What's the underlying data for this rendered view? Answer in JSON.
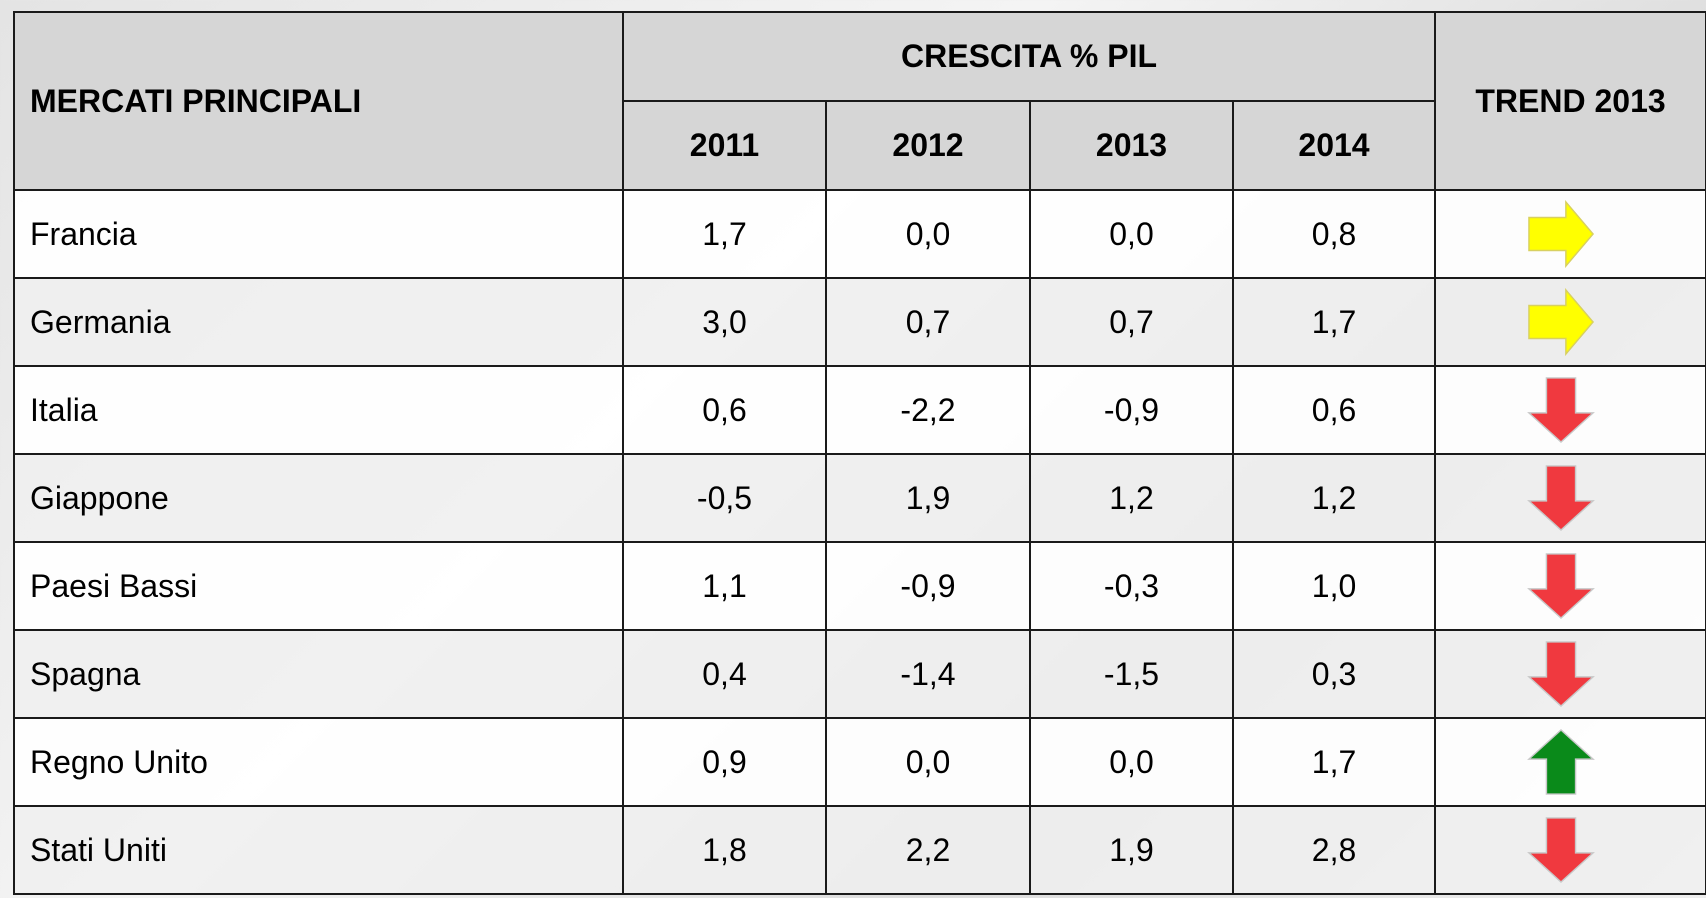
{
  "table": {
    "header": {
      "market": "MERCATI PRINCIPALI",
      "growth": "CRESCITA % PIL",
      "trend": "TREND 2013",
      "years": [
        "2011",
        "2012",
        "2013",
        "2014"
      ]
    },
    "rows": [
      [
        "Francia",
        "1,7",
        "0,0",
        "0,0",
        "0,8"
      ],
      [
        "Germania",
        "3,0",
        "0,7",
        "0,7",
        "1,7"
      ],
      [
        "Italia",
        "0,6",
        "-2,2",
        "-0,9",
        "0,6"
      ],
      [
        "Giappone",
        "-0,5",
        "1,9",
        "1,2",
        "1,2"
      ],
      [
        "Paesi Bassi",
        "1,1",
        "-0,9",
        "-0,3",
        "1,0"
      ],
      [
        "Spagna",
        "0,4",
        "-1,4",
        "-1,5",
        "0,3"
      ],
      [
        "Regno Unito",
        "0,9",
        "0,0",
        "0,0",
        "1,7"
      ],
      [
        "Stati Uniti",
        "1,8",
        "2,2",
        "1,9",
        "2,8"
      ]
    ]
  }
}
